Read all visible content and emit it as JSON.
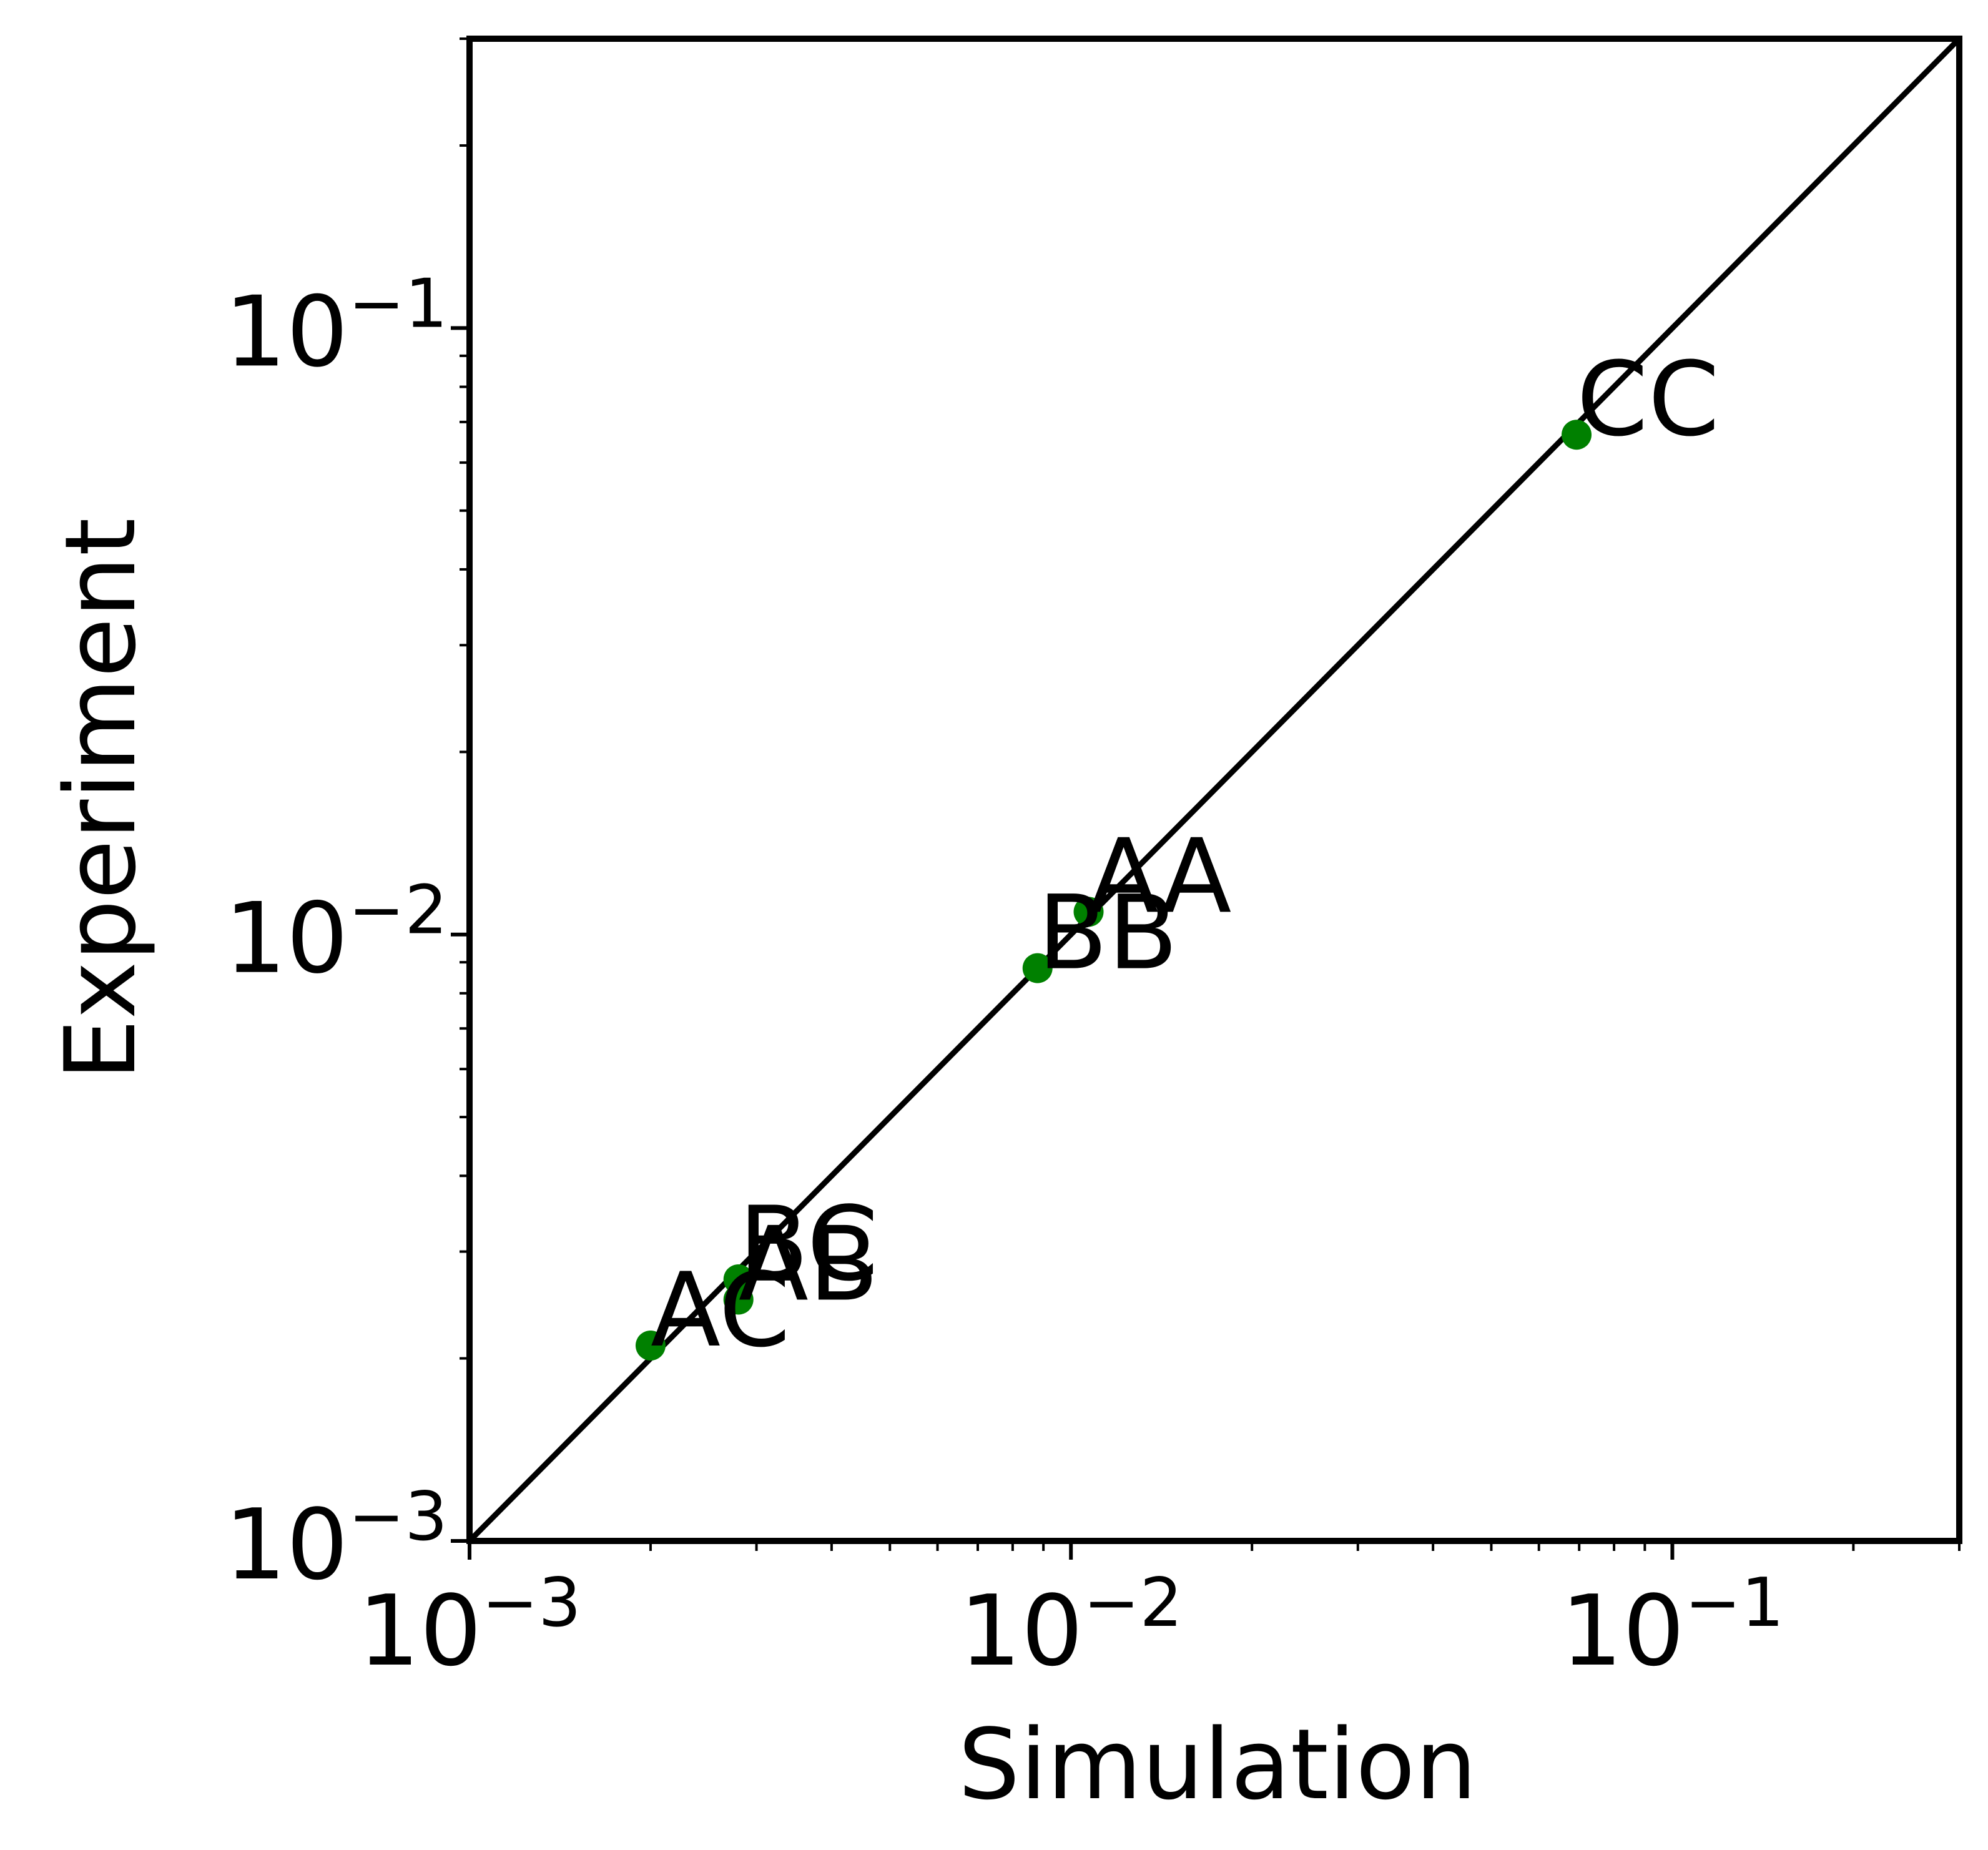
{
  "chart_data": {
    "type": "scatter",
    "title": "",
    "xlabel": "Simulation",
    "ylabel": "Experiment",
    "xscale": "log",
    "yscale": "log",
    "xlim": [
      0.001,
      0.3
    ],
    "ylim": [
      0.001,
      0.3
    ],
    "grid": false,
    "legend": "none",
    "x_ticks": [
      {
        "value": 0.001,
        "base": "10",
        "exp": "−3"
      },
      {
        "value": 0.01,
        "base": "10",
        "exp": "−2"
      },
      {
        "value": 0.1,
        "base": "10",
        "exp": "−1"
      }
    ],
    "y_ticks": [
      {
        "value": 0.001,
        "base": "10",
        "exp": "−3"
      },
      {
        "value": 0.01,
        "base": "10",
        "exp": "−2"
      },
      {
        "value": 0.1,
        "base": "10",
        "exp": "−1"
      }
    ],
    "reference_line": {
      "from": [
        0.001,
        0.001
      ],
      "to": [
        0.3,
        0.3
      ],
      "color": "#000000"
    },
    "point_color": "#008000",
    "points": [
      {
        "label": "AC",
        "x": 0.002,
        "y": 0.0021
      },
      {
        "label": "AB",
        "x": 0.0028,
        "y": 0.0025
      },
      {
        "label": "BC",
        "x": 0.0028,
        "y": 0.0027
      },
      {
        "label": "BB",
        "x": 0.0088,
        "y": 0.0088
      },
      {
        "label": "AA",
        "x": 0.0107,
        "y": 0.0109
      },
      {
        "label": "CC",
        "x": 0.0693,
        "y": 0.0667
      }
    ]
  }
}
